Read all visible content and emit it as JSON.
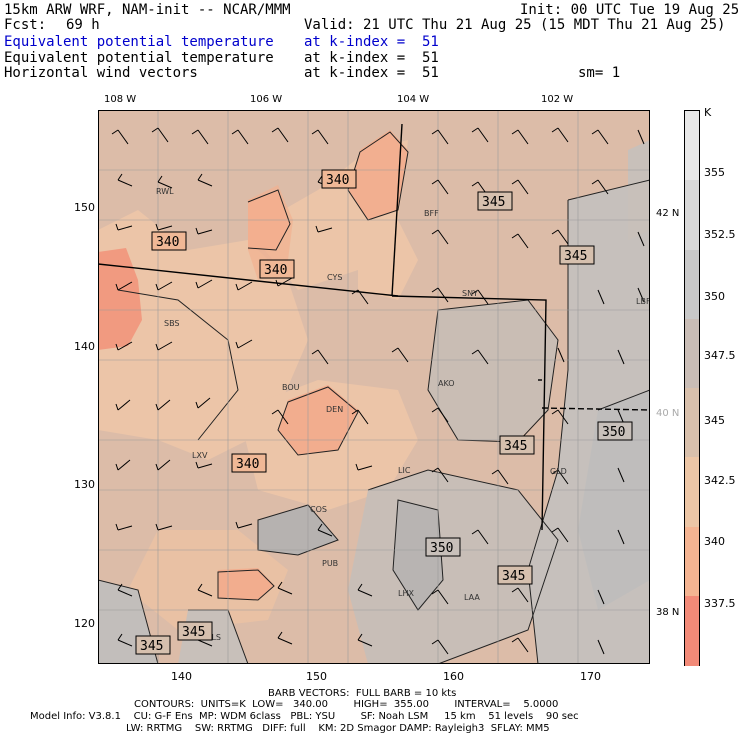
{
  "header": {
    "title": "15km ARW WRF, NAM-init -- NCAR/MMM",
    "init": "Init: 00 UTC Tue 19 Aug 25",
    "fcst_label": "Fcst:",
    "fcst_value": "69 h",
    "valid": "Valid: 21 UTC Thu 21 Aug 25 (15 MDT Thu 21 Aug 25)",
    "fields": [
      {
        "name": "Equivalent potential temperature",
        "level": "at k-index =  51",
        "color": "#0000cc"
      },
      {
        "name": "Equivalent potential temperature",
        "level": "at k-index =  51",
        "color": "#000000"
      },
      {
        "name": "Horizontal wind vectors",
        "level": "at k-index =  51",
        "color": "#000000"
      }
    ],
    "smoothing": "sm= 1"
  },
  "map": {
    "lon_ticks": [
      "108 W",
      "106 W",
      "104 W",
      "102 W"
    ],
    "lat_ticks": [
      "42 N",
      "40 N",
      "38 N"
    ],
    "x_ticks": [
      "140",
      "150",
      "160",
      "170"
    ],
    "y_ticks": [
      "150",
      "140",
      "130",
      "120"
    ],
    "stations": [
      "RWL",
      "BFF",
      "CYS",
      "SNY",
      "SBS",
      "LBF",
      "BOU",
      "AKO",
      "DEN",
      "LXV",
      "LIC",
      "GLD",
      "COS",
      "PUB",
      "LHX",
      "LAA",
      "ALS"
    ],
    "contour_labels": [
      "340",
      "340",
      "340",
      "340",
      "345",
      "345",
      "345",
      "345",
      "345",
      "345",
      "350",
      "350"
    ]
  },
  "colorbar": {
    "unit": "K",
    "labels": [
      "355",
      "352.5",
      "350",
      "347.5",
      "345",
      "342.5",
      "340",
      "337.5"
    ],
    "colors": [
      "#e8e8e8",
      "#d8d8d8",
      "#c8c8c8",
      "#c9bdb6",
      "#d8c0ac",
      "#ecc6a6",
      "#f4b492",
      "#f28a78"
    ]
  },
  "footer": {
    "line1": "BARB VECTORS:  FULL BARB = 10 kts",
    "line2": "CONTOURS:  UNITS=K  LOW=   340.00        HIGH=  355.00        INTERVAL=    5.0000",
    "line3": "Model Info: V3.8.1    CU: G-F Ens  MP: WDM 6class   PBL: YSU        SF: Noah LSM     15 km    51 levels    90 sec",
    "line4": "LW: RRTMG    SW: RRTMG   DIFF: full    KM: 2D Smagor DAMP: Rayleigh3  SFLAY: MM5"
  }
}
